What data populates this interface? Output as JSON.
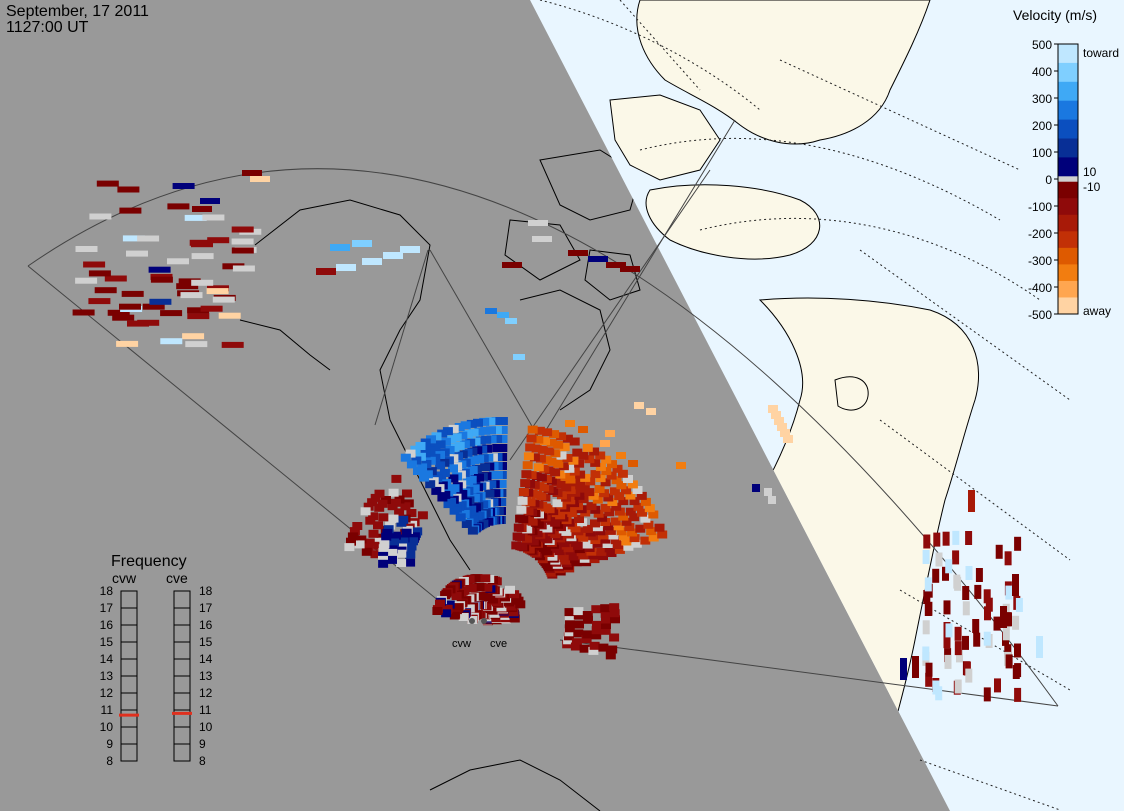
{
  "header": {
    "date": "September, 17 2011",
    "time": "1127:00 UT"
  },
  "colorbar": {
    "title": "Velocity (m/s)",
    "ticks": [
      "500",
      "400",
      "300",
      "200",
      "100",
      "0",
      "-100",
      "-200",
      "-300",
      "-400",
      "-500"
    ],
    "side_labels": {
      "toward": "toward",
      "away": "away",
      "plus10": "10",
      "minus10": "-10"
    },
    "colors_toward": [
      "#bfe7ff",
      "#7fcfff",
      "#3fa9f5",
      "#1a78e0",
      "#0b4fbf",
      "#082f96",
      "#00007a"
    ],
    "colors_away": [
      "#7a0000",
      "#8f0a0a",
      "#a81a08",
      "#c23006",
      "#de5a00",
      "#f27d10",
      "#ffa650",
      "#ffd3a3"
    ],
    "color_zero": "#d0d0d0"
  },
  "frequency_panel": {
    "title": "Frequency",
    "radars": [
      "cvw",
      "cve"
    ],
    "levels": [
      "18",
      "17",
      "16",
      "15",
      "14",
      "13",
      "12",
      "11",
      "10",
      "9",
      "8"
    ],
    "cvw_mhz": 10.7,
    "cve_mhz": 10.8,
    "marker_color": "#e0301e"
  },
  "map": {
    "night_color": "#999999",
    "day_ocean_color": "#e9f6ff",
    "day_land_color": "#fbf8e8",
    "site_labels": [
      "cvw",
      "cve"
    ]
  }
}
